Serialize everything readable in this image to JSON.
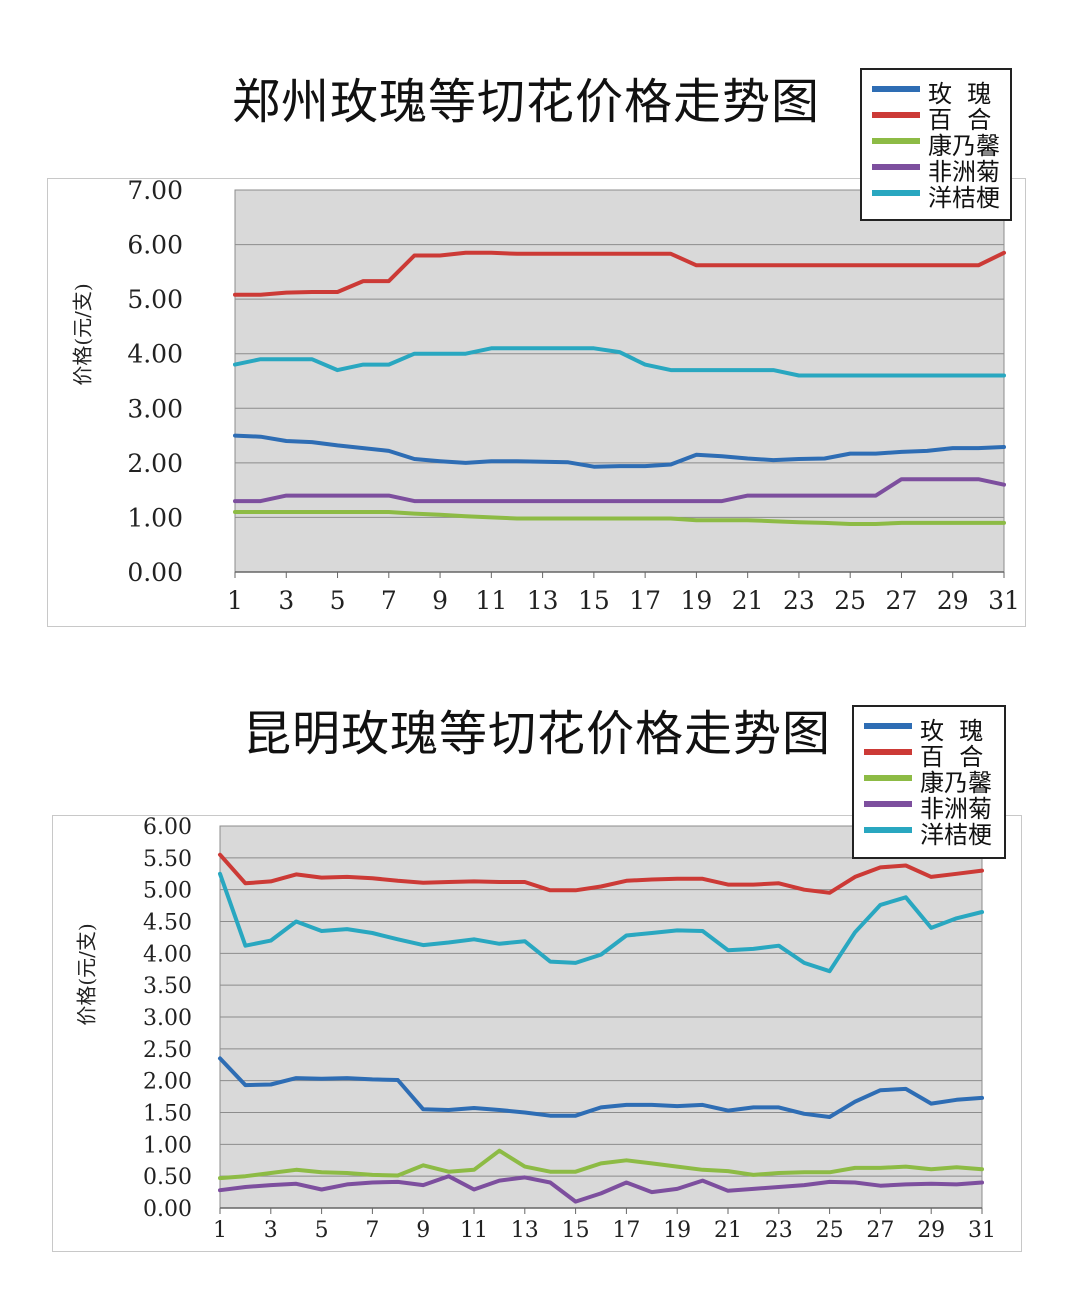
{
  "charts": [
    {
      "title": "郑州玫瑰等切花价格走势图",
      "ylabel": "价格(元/支)",
      "chart_data": {
        "type": "line",
        "title": "郑州玫瑰等切花价格走势图",
        "xlabel": "",
        "ylabel": "价格(元/支)",
        "x": [
          1,
          2,
          3,
          4,
          5,
          6,
          7,
          8,
          9,
          10,
          11,
          12,
          13,
          14,
          15,
          16,
          17,
          18,
          19,
          20,
          21,
          22,
          23,
          24,
          25,
          26,
          27,
          28,
          29,
          30,
          31
        ],
        "x_tick_labels": [
          "1",
          "3",
          "5",
          "7",
          "9",
          "11",
          "13",
          "15",
          "17",
          "19",
          "21",
          "23",
          "25",
          "27",
          "29",
          "31"
        ],
        "y_tick_labels": [
          "0.00",
          "1.00",
          "2.00",
          "3.00",
          "4.00",
          "5.00",
          "6.00",
          "7.00"
        ],
        "ylim": [
          0,
          7
        ],
        "grid": true,
        "legend_position": "top-right",
        "series": [
          {
            "name": "玫  瑰",
            "color": "#2e6db4",
            "values": [
              2.5,
              2.48,
              2.4,
              2.38,
              2.32,
              2.27,
              2.22,
              2.07,
              2.03,
              2.0,
              2.03,
              2.03,
              2.02,
              2.01,
              1.93,
              1.94,
              1.94,
              1.97,
              2.15,
              2.12,
              2.08,
              2.05,
              2.07,
              2.08,
              2.17,
              2.17,
              2.2,
              2.22,
              2.27,
              2.27,
              2.29
            ]
          },
          {
            "name": "百  合",
            "color": "#cc3a36",
            "values": [
              5.08,
              5.08,
              5.12,
              5.13,
              5.13,
              5.33,
              5.33,
              5.8,
              5.8,
              5.85,
              5.85,
              5.83,
              5.83,
              5.83,
              5.83,
              5.83,
              5.83,
              5.83,
              5.62,
              5.62,
              5.62,
              5.62,
              5.62,
              5.62,
              5.62,
              5.62,
              5.62,
              5.62,
              5.62,
              5.62,
              5.85
            ]
          },
          {
            "name": "康乃馨",
            "color": "#8dbb45",
            "values": [
              1.1,
              1.1,
              1.1,
              1.1,
              1.1,
              1.1,
              1.1,
              1.07,
              1.05,
              1.02,
              1.0,
              0.98,
              0.98,
              0.98,
              0.98,
              0.98,
              0.98,
              0.98,
              0.95,
              0.95,
              0.95,
              0.93,
              0.91,
              0.9,
              0.88,
              0.88,
              0.9,
              0.9,
              0.9,
              0.9,
              0.9
            ]
          },
          {
            "name": "非洲菊",
            "color": "#7d4f9e",
            "values": [
              1.3,
              1.3,
              1.4,
              1.4,
              1.4,
              1.4,
              1.4,
              1.3,
              1.3,
              1.3,
              1.3,
              1.3,
              1.3,
              1.3,
              1.3,
              1.3,
              1.3,
              1.3,
              1.3,
              1.3,
              1.4,
              1.4,
              1.4,
              1.4,
              1.4,
              1.4,
              1.7,
              1.7,
              1.7,
              1.7,
              1.6
            ]
          },
          {
            "name": "洋桔梗",
            "color": "#29a7c0",
            "values": [
              3.8,
              3.9,
              3.9,
              3.9,
              3.7,
              3.8,
              3.8,
              4.0,
              4.0,
              4.0,
              4.1,
              4.1,
              4.1,
              4.1,
              4.1,
              4.03,
              3.8,
              3.7,
              3.7,
              3.7,
              3.7,
              3.7,
              3.6,
              3.6,
              3.6,
              3.6,
              3.6,
              3.6,
              3.6,
              3.6,
              3.6
            ]
          }
        ]
      }
    },
    {
      "title": "昆明玫瑰等切花价格走势图",
      "ylabel": "价格(元/支)",
      "chart_data": {
        "type": "line",
        "title": "昆明玫瑰等切花价格走势图",
        "xlabel": "",
        "ylabel": "价格(元/支)",
        "x": [
          1,
          2,
          3,
          4,
          5,
          6,
          7,
          8,
          9,
          10,
          11,
          12,
          13,
          14,
          15,
          16,
          17,
          18,
          19,
          20,
          21,
          22,
          23,
          24,
          25,
          26,
          27,
          28,
          29,
          30,
          31
        ],
        "x_tick_labels": [
          "1",
          "3",
          "5",
          "7",
          "9",
          "11",
          "13",
          "15",
          "17",
          "19",
          "21",
          "23",
          "25",
          "27",
          "29",
          "31"
        ],
        "y_tick_labels": [
          "0.00",
          "0.50",
          "1.00",
          "1.50",
          "2.00",
          "2.50",
          "3.00",
          "3.50",
          "4.00",
          "4.50",
          "5.00",
          "5.50",
          "6.00"
        ],
        "ylim": [
          0,
          6
        ],
        "grid": true,
        "legend_position": "top-right",
        "series": [
          {
            "name": "玫  瑰",
            "color": "#2e6db4",
            "values": [
              2.35,
              1.93,
              1.94,
              2.04,
              2.03,
              2.04,
              2.02,
              2.01,
              1.55,
              1.54,
              1.57,
              1.54,
              1.5,
              1.45,
              1.45,
              1.58,
              1.62,
              1.62,
              1.6,
              1.62,
              1.53,
              1.58,
              1.58,
              1.48,
              1.43,
              1.67,
              1.85,
              1.87,
              1.64,
              1.7,
              1.73
            ]
          },
          {
            "name": "百  合",
            "color": "#cc3a36",
            "values": [
              5.55,
              5.1,
              5.13,
              5.24,
              5.19,
              5.2,
              5.18,
              5.14,
              5.11,
              5.12,
              5.13,
              5.12,
              5.12,
              4.99,
              4.99,
              5.05,
              5.14,
              5.16,
              5.17,
              5.17,
              5.08,
              5.08,
              5.1,
              5.0,
              4.95,
              5.2,
              5.35,
              5.38,
              5.2,
              5.25,
              5.3
            ]
          },
          {
            "name": "康乃馨",
            "color": "#8dbb45",
            "values": [
              0.47,
              0.5,
              0.55,
              0.6,
              0.56,
              0.55,
              0.52,
              0.51,
              0.67,
              0.57,
              0.6,
              0.9,
              0.65,
              0.57,
              0.57,
              0.7,
              0.75,
              0.7,
              0.65,
              0.6,
              0.58,
              0.52,
              0.55,
              0.56,
              0.56,
              0.63,
              0.63,
              0.65,
              0.61,
              0.64,
              0.61
            ]
          },
          {
            "name": "非洲菊",
            "color": "#7d4f9e",
            "values": [
              0.28,
              0.33,
              0.36,
              0.38,
              0.29,
              0.37,
              0.4,
              0.41,
              0.36,
              0.5,
              0.29,
              0.43,
              0.48,
              0.4,
              0.1,
              0.23,
              0.4,
              0.25,
              0.3,
              0.43,
              0.27,
              0.3,
              0.33,
              0.36,
              0.41,
              0.4,
              0.35,
              0.37,
              0.38,
              0.37,
              0.4
            ]
          },
          {
            "name": "洋桔梗",
            "color": "#29a7c0",
            "values": [
              5.25,
              4.12,
              4.2,
              4.5,
              4.35,
              4.38,
              4.32,
              4.22,
              4.13,
              4.17,
              4.22,
              4.15,
              4.19,
              3.87,
              3.85,
              3.98,
              4.28,
              4.32,
              4.36,
              4.35,
              4.05,
              4.07,
              4.12,
              3.85,
              3.72,
              4.33,
              4.76,
              4.88,
              4.4,
              4.55,
              4.65
            ]
          }
        ]
      }
    }
  ]
}
